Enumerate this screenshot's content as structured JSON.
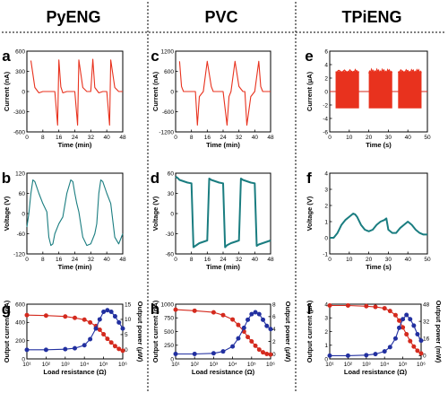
{
  "headers": [
    "PyENG",
    "PVC",
    "TPiENG"
  ],
  "chart_data": [
    {
      "id": "a",
      "panel_label": "a",
      "type": "line",
      "xlabel": "Time (min)",
      "ylabel": "Current (nA)",
      "xlim": [
        0,
        48
      ],
      "ylim": [
        -600,
        600
      ],
      "xticks": [
        "0",
        "8",
        "16",
        "24",
        "32",
        "40",
        "48"
      ],
      "yticks": [
        "-600",
        "-300",
        "0",
        "300",
        "600"
      ],
      "color": "#e8321e",
      "series": [
        {
          "x": [
            2,
            4,
            6,
            8,
            10,
            12,
            14,
            15.4,
            16,
            17,
            18,
            20,
            22,
            24,
            25.4,
            26,
            28,
            30,
            31,
            32,
            33,
            34,
            36,
            38,
            40,
            41.4,
            42,
            44,
            46,
            48
          ],
          "y": [
            460,
            60,
            -20,
            0,
            0,
            0,
            0,
            -500,
            470,
            70,
            -20,
            0,
            0,
            0,
            -500,
            470,
            60,
            0,
            0,
            0,
            480,
            60,
            -20,
            0,
            0,
            -500,
            470,
            60,
            0,
            0
          ]
        }
      ]
    },
    {
      "id": "b",
      "panel_label": "b",
      "type": "line",
      "xlabel": "Time (min)",
      "ylabel": "Voltage (V)",
      "xlim": [
        0,
        48
      ],
      "ylim": [
        -120,
        120
      ],
      "xticks": [
        "0",
        "8",
        "16",
        "24",
        "32",
        "40",
        "48"
      ],
      "yticks": [
        "-120",
        "-60",
        "0",
        "60",
        "120"
      ],
      "color": "#1a7d80",
      "series": [
        {
          "x": [
            0,
            1,
            2,
            3,
            4,
            6,
            8,
            10,
            11,
            12,
            13,
            14,
            16,
            18,
            20,
            22,
            23,
            24,
            25,
            26,
            28,
            30,
            32,
            34,
            35,
            36,
            37,
            38,
            40,
            42,
            44,
            46,
            48
          ],
          "y": [
            -40,
            0,
            60,
            100,
            95,
            60,
            30,
            5,
            -70,
            -95,
            -90,
            -60,
            -30,
            -10,
            60,
            100,
            95,
            60,
            30,
            5,
            -70,
            -95,
            -90,
            -60,
            -30,
            60,
            100,
            95,
            60,
            30,
            -70,
            -90,
            -60
          ]
        }
      ]
    },
    {
      "id": "c",
      "panel_label": "c",
      "type": "line",
      "xlabel": "Time (min)",
      "ylabel": "Current (nA)",
      "xlim": [
        0,
        48
      ],
      "ylim": [
        -1200,
        1200
      ],
      "xticks": [
        "0",
        "8",
        "16",
        "24",
        "32",
        "40",
        "48"
      ],
      "yticks": [
        "-1200",
        "-600",
        "0",
        "600",
        "1200"
      ],
      "color": "#e8321e",
      "series": [
        {
          "x": [
            2,
            3,
            4,
            6,
            8,
            10,
            11,
            12,
            14,
            16,
            18,
            19,
            20,
            22,
            24,
            26,
            27,
            28,
            30,
            32,
            34,
            35,
            36,
            38,
            40,
            42,
            43,
            44,
            46,
            48
          ],
          "y": [
            900,
            150,
            0,
            0,
            0,
            0,
            -1000,
            -150,
            0,
            900,
            150,
            0,
            0,
            0,
            0,
            -1000,
            -150,
            0,
            900,
            150,
            0,
            0,
            -1000,
            -150,
            0,
            900,
            150,
            0,
            0,
            0
          ]
        }
      ]
    },
    {
      "id": "d",
      "panel_label": "d",
      "type": "line",
      "xlabel": "Time (min)",
      "ylabel": "Voltage (V)",
      "xlim": [
        0,
        48
      ],
      "ylim": [
        -60,
        60
      ],
      "xticks": [
        "0",
        "8",
        "16",
        "24",
        "32",
        "40",
        "48"
      ],
      "yticks": [
        "-60",
        "-30",
        "0",
        "30",
        "60"
      ],
      "color": "#1a7d80",
      "series": [
        {
          "x": [
            0,
            1,
            2,
            4,
            6,
            8,
            9,
            10,
            12,
            14,
            16,
            17,
            18,
            20,
            22,
            24,
            25,
            26,
            28,
            30,
            32,
            33,
            34,
            36,
            38,
            40,
            41,
            42,
            44,
            46,
            48
          ],
          "y": [
            55,
            53,
            50,
            48,
            46,
            45,
            -50,
            -48,
            -44,
            -42,
            -40,
            52,
            50,
            48,
            46,
            45,
            -50,
            -47,
            -44,
            -42,
            -40,
            52,
            50,
            48,
            46,
            45,
            -48,
            -46,
            -44,
            -42,
            -40
          ]
        }
      ]
    },
    {
      "id": "e",
      "panel_label": "e",
      "type": "area",
      "xlabel": "Time (s)",
      "ylabel": "Current (μA)",
      "xlim": [
        0,
        50
      ],
      "ylim": [
        -6,
        6
      ],
      "xticks": [
        "0",
        "10",
        "20",
        "30",
        "40",
        "50"
      ],
      "yticks": [
        "-6",
        "-4",
        "-2",
        "0",
        "2",
        "4",
        "6"
      ],
      "color": "#e8321e",
      "bursts": [
        {
          "start": 3,
          "end": 15,
          "upper": 3,
          "lower": -2.5
        },
        {
          "start": 20,
          "end": 32,
          "upper": 3,
          "lower": -2.5
        },
        {
          "start": 35,
          "end": 47,
          "upper": 3,
          "lower": -2.5
        }
      ]
    },
    {
      "id": "f",
      "panel_label": "f",
      "type": "line",
      "xlabel": "Time (s)",
      "ylabel": "Voltage (V)",
      "xlim": [
        0,
        50
      ],
      "ylim": [
        -1,
        4
      ],
      "xticks": [
        "0",
        "10",
        "20",
        "30",
        "40",
        "50"
      ],
      "yticks": [
        "-1",
        "0",
        "1",
        "2",
        "3",
        "4"
      ],
      "color": "#1a7d80",
      "series": [
        {
          "x": [
            0,
            2,
            4,
            6,
            8,
            10,
            12,
            13,
            14,
            16,
            18,
            20,
            22,
            24,
            26,
            28,
            29,
            30,
            32,
            34,
            36,
            38,
            40,
            42,
            44,
            46,
            48,
            50
          ],
          "y": [
            0,
            0,
            0.3,
            0.8,
            1.1,
            1.3,
            1.5,
            1.45,
            1.3,
            0.8,
            0.5,
            0.4,
            0.5,
            0.8,
            1.0,
            1.1,
            1.2,
            0.5,
            0.3,
            0.3,
            0.6,
            0.8,
            1.0,
            0.8,
            0.5,
            0.3,
            0.2,
            0.2
          ]
        }
      ]
    },
    {
      "id": "g",
      "panel_label": "g",
      "type": "line",
      "xlabel": "Load resistance (Ω)",
      "ylabel": "Output current (nA)",
      "y2label": "Output power (μW)",
      "xscale": "log",
      "xlim": [
        1,
        6
      ],
      "ylim": [
        0,
        600
      ],
      "y2lim": [
        -3,
        15
      ],
      "xticks": [
        "10¹",
        "10²",
        "10³",
        "10⁴",
        "10⁵",
        "10⁶"
      ],
      "yticks": [
        "0",
        "200",
        "400",
        "600"
      ],
      "y2ticks": [
        "0",
        "5",
        "10",
        "15"
      ],
      "series": [
        {
          "axis": "left",
          "color": "#d42a1e",
          "x": [
            1,
            2,
            3,
            3.5,
            4,
            4.3,
            4.6,
            4.8,
            5.0,
            5.2,
            5.4,
            5.6,
            5.8,
            6.0
          ],
          "y": [
            480,
            475,
            465,
            450,
            430,
            400,
            360,
            320,
            270,
            220,
            180,
            140,
            110,
            90
          ]
        },
        {
          "axis": "right",
          "color": "#2230a0",
          "x": [
            1,
            2,
            3,
            3.5,
            4,
            4.3,
            4.6,
            4.8,
            5.0,
            5.2,
            5.4,
            5.6,
            5.8,
            6.0
          ],
          "y": [
            0,
            0,
            0.2,
            0.5,
            1.5,
            3.5,
            7,
            10,
            12.5,
            13,
            12.5,
            11,
            9,
            7
          ]
        }
      ]
    },
    {
      "id": "h",
      "panel_label": "h",
      "type": "line",
      "xlabel": "Load resistance (Ω)",
      "ylabel": "Output current (nA)",
      "y2label": "Output power (μW)",
      "xscale": "log",
      "xlim": [
        1,
        6
      ],
      "ylim": [
        0,
        1000
      ],
      "y2lim": [
        -0.8,
        8
      ],
      "xticks": [
        "10¹",
        "10²",
        "10³",
        "10⁴",
        "10⁵",
        "10⁶"
      ],
      "yticks": [
        "0",
        "250",
        "500",
        "750",
        "1000"
      ],
      "y2ticks": [
        "0",
        "2",
        "4",
        "6",
        "8"
      ],
      "series": [
        {
          "axis": "left",
          "color": "#d42a1e",
          "x": [
            1,
            2,
            3,
            3.5,
            4,
            4.3,
            4.6,
            4.8,
            5.0,
            5.2,
            5.4,
            5.6,
            5.8,
            6.0
          ],
          "y": [
            900,
            880,
            850,
            800,
            720,
            620,
            500,
            400,
            320,
            240,
            170,
            120,
            90,
            80
          ]
        },
        {
          "axis": "right",
          "color": "#2230a0",
          "x": [
            1,
            2,
            3,
            3.5,
            4,
            4.3,
            4.6,
            4.8,
            5.0,
            5.2,
            5.4,
            5.6,
            5.8,
            6.0
          ],
          "y": [
            0,
            0,
            0.1,
            0.4,
            1.2,
            2.5,
            4.2,
            5.5,
            6.4,
            6.7,
            6.4,
            5.5,
            4.5,
            4.0
          ]
        }
      ]
    },
    {
      "id": "i",
      "panel_label": "i",
      "type": "line",
      "xlabel": "Load resistance (Ω)",
      "ylabel": "Output current (μA)",
      "y2label": "Output power (mW)",
      "xscale": "log",
      "xlim": [
        1,
        6
      ],
      "ylim": [
        0,
        4
      ],
      "y2lim": [
        -3,
        48
      ],
      "xticks": [
        "10¹",
        "10²",
        "10³",
        "10⁴",
        "10⁵",
        "10⁶"
      ],
      "yticks": [
        "0",
        "1",
        "2",
        "3",
        "4"
      ],
      "y2ticks": [
        "0",
        "16",
        "32",
        "48"
      ],
      "series": [
        {
          "axis": "left",
          "color": "#d42a1e",
          "x": [
            1,
            2,
            3,
            3.5,
            4,
            4.3,
            4.6,
            4.8,
            5.0,
            5.2,
            5.4,
            5.6,
            5.8,
            6.0
          ],
          "y": [
            3.9,
            3.9,
            3.85,
            3.8,
            3.7,
            3.5,
            3.2,
            2.8,
            2.3,
            1.8,
            1.3,
            0.9,
            0.6,
            0.4
          ]
        },
        {
          "axis": "right",
          "color": "#2230a0",
          "x": [
            1,
            2,
            3,
            3.5,
            4,
            4.3,
            4.6,
            4.8,
            5.0,
            5.2,
            5.4,
            5.6,
            5.8,
            6.0
          ],
          "y": [
            0,
            0,
            0.5,
            1.5,
            4,
            8,
            16,
            26,
            34,
            38,
            34,
            28,
            20,
            14
          ]
        }
      ]
    }
  ]
}
